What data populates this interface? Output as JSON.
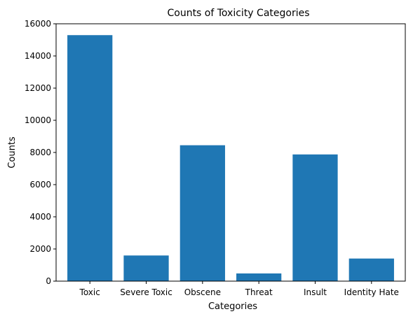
{
  "chart_data": {
    "type": "bar",
    "title": "Counts of Toxicity Categories",
    "xlabel": "Categories",
    "ylabel": "Counts",
    "categories": [
      "Toxic",
      "Severe Toxic",
      "Obscene",
      "Threat",
      "Insult",
      "Identity Hate"
    ],
    "values": [
      15294,
      1595,
      8449,
      478,
      7877,
      1405
    ],
    "ylim": [
      0,
      16000
    ],
    "yticks": [
      0,
      2000,
      4000,
      6000,
      8000,
      10000,
      12000,
      14000,
      16000
    ],
    "grid": false,
    "legend": "none",
    "bar_color": "#1f77b4"
  }
}
